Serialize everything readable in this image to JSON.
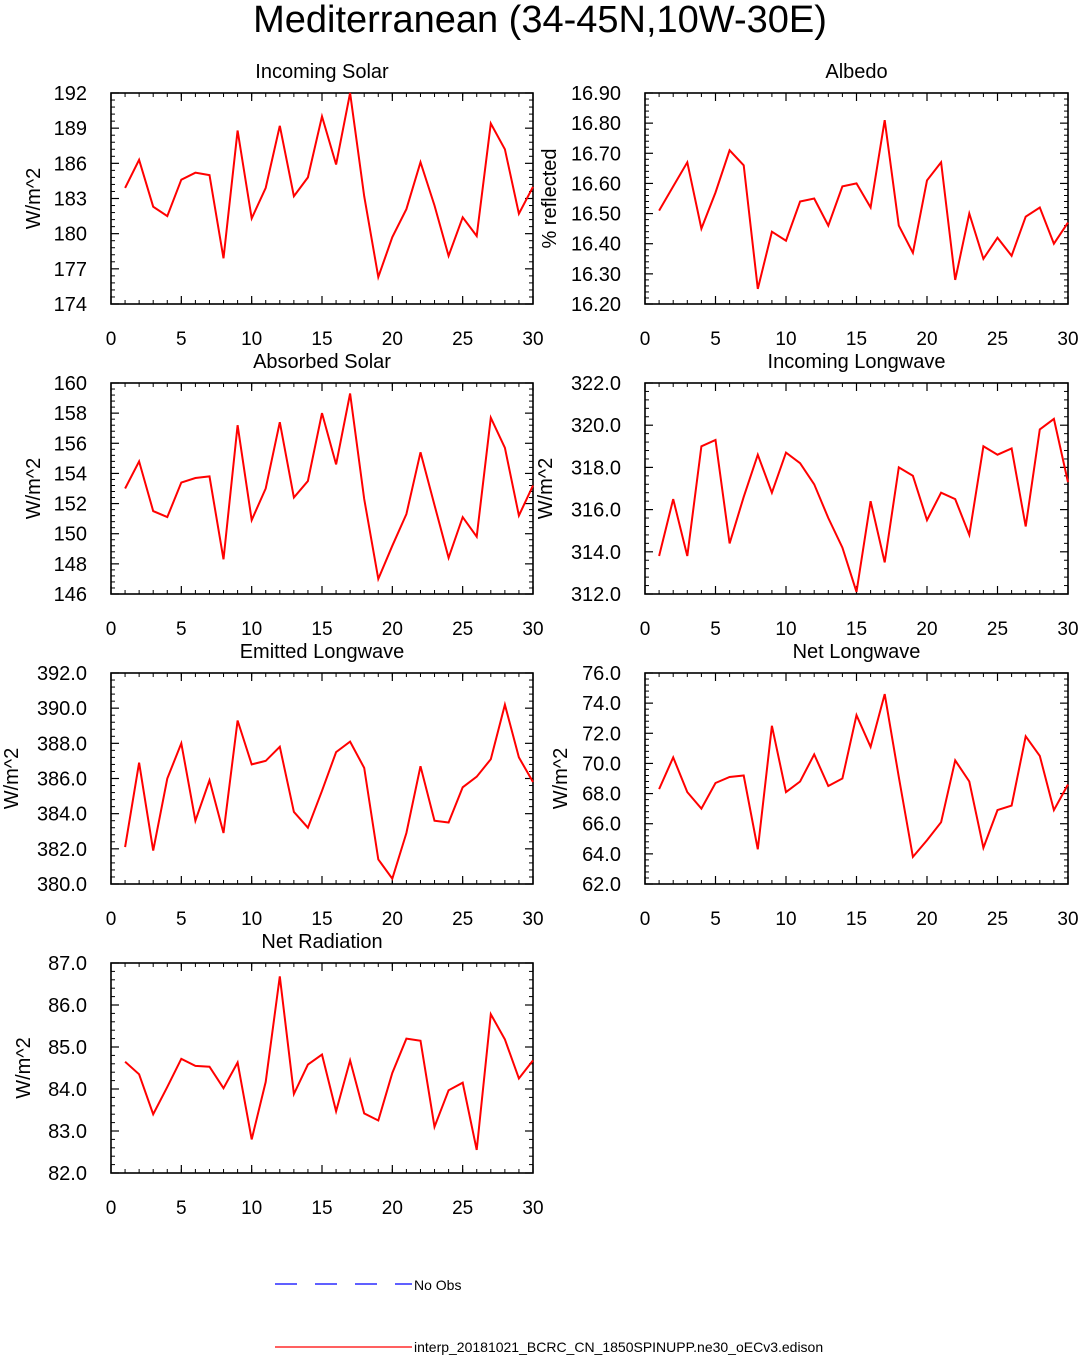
{
  "title": "Mediterranean (34-45N,10W-30E)",
  "legend": [
    {
      "label": "No Obs",
      "color": "#0000ff",
      "style": "dashed"
    },
    {
      "label": "interp_20181021_BCRC_CN_1850SPINUPP.ne30_oECv3.edison",
      "color": "#ff0000",
      "style": "solid"
    }
  ],
  "chart_data": [
    {
      "type": "line",
      "title": "Incoming Solar",
      "ylabel": "W/m^2",
      "xlabel": "",
      "xlim": [
        0,
        30
      ],
      "ylim": [
        174,
        192
      ],
      "xticks": [
        0,
        5,
        10,
        15,
        20,
        25,
        30
      ],
      "xtick_labels": [
        "0",
        "5",
        "10",
        "15",
        "20",
        "25",
        "30"
      ],
      "yticks": [
        174,
        177,
        180,
        183,
        186,
        189,
        192
      ],
      "ytick_labels": [
        "174",
        "177",
        "180",
        "183",
        "186",
        "189",
        "192"
      ],
      "x": [
        1,
        2,
        3,
        4,
        5,
        6,
        7,
        8,
        9,
        10,
        11,
        12,
        13,
        14,
        15,
        16,
        17,
        18,
        19,
        20,
        21,
        22,
        23,
        24,
        25,
        26,
        27,
        28,
        29,
        30
      ],
      "series": [
        {
          "name": "interp_20181021_BCRC_CN_1850SPINUPP.ne30_oECv3.edison",
          "color": "#ff0000",
          "values": [
            183.9,
            186.3,
            182.3,
            181.5,
            184.6,
            185.2,
            185.0,
            177.9,
            188.8,
            181.3,
            183.9,
            189.2,
            183.2,
            184.8,
            190.0,
            185.9,
            192.0,
            183.2,
            176.3,
            179.7,
            182.1,
            186.1,
            182.4,
            178.1,
            181.4,
            179.8,
            189.4,
            187.2,
            181.7,
            184.0
          ]
        }
      ]
    },
    {
      "type": "line",
      "title": "Albedo",
      "ylabel": "% reflected",
      "xlabel": "",
      "xlim": [
        0,
        30
      ],
      "ylim": [
        16.2,
        16.9
      ],
      "xticks": [
        0,
        5,
        10,
        15,
        20,
        25,
        30
      ],
      "xtick_labels": [
        "0",
        "5",
        "10",
        "15",
        "20",
        "25",
        "30"
      ],
      "yticks": [
        16.2,
        16.3,
        16.4,
        16.5,
        16.6,
        16.7,
        16.8,
        16.9
      ],
      "ytick_labels": [
        "16.20",
        "16.30",
        "16.40",
        "16.50",
        "16.60",
        "16.70",
        "16.80",
        "16.90"
      ],
      "x": [
        1,
        2,
        3,
        4,
        5,
        6,
        7,
        8,
        9,
        10,
        11,
        12,
        13,
        14,
        15,
        16,
        17,
        18,
        19,
        20,
        21,
        22,
        23,
        24,
        25,
        26,
        27,
        28,
        29,
        30
      ],
      "series": [
        {
          "name": "interp_20181021_BCRC_CN_1850SPINUPP.ne30_oECv3.edison",
          "color": "#ff0000",
          "values": [
            16.51,
            16.59,
            16.67,
            16.45,
            16.57,
            16.71,
            16.66,
            16.25,
            16.44,
            16.41,
            16.54,
            16.55,
            16.46,
            16.59,
            16.6,
            16.52,
            16.81,
            16.46,
            16.37,
            16.61,
            16.67,
            16.28,
            16.5,
            16.35,
            16.42,
            16.36,
            16.49,
            16.52,
            16.4,
            16.47
          ]
        }
      ]
    },
    {
      "type": "line",
      "title": "Absorbed Solar",
      "ylabel": "W/m^2",
      "xlabel": "",
      "xlim": [
        0,
        30
      ],
      "ylim": [
        146,
        160
      ],
      "xticks": [
        0,
        5,
        10,
        15,
        20,
        25,
        30
      ],
      "xtick_labels": [
        "0",
        "5",
        "10",
        "15",
        "20",
        "25",
        "30"
      ],
      "yticks": [
        146,
        148,
        150,
        152,
        154,
        156,
        158,
        160
      ],
      "ytick_labels": [
        "146",
        "148",
        "150",
        "152",
        "154",
        "156",
        "158",
        "160"
      ],
      "x": [
        1,
        2,
        3,
        4,
        5,
        6,
        7,
        8,
        9,
        10,
        11,
        12,
        13,
        14,
        15,
        16,
        17,
        18,
        19,
        20,
        21,
        22,
        23,
        24,
        25,
        26,
        27,
        28,
        29,
        30
      ],
      "series": [
        {
          "name": "interp_20181021_BCRC_CN_1850SPINUPP.ne30_oECv3.edison",
          "color": "#ff0000",
          "values": [
            153.0,
            154.8,
            151.5,
            151.1,
            153.4,
            153.7,
            153.8,
            148.3,
            157.2,
            150.9,
            153.0,
            157.4,
            152.4,
            153.5,
            158.0,
            154.6,
            159.3,
            152.3,
            147.0,
            149.2,
            151.3,
            155.4,
            151.9,
            148.4,
            151.1,
            149.8,
            157.7,
            155.7,
            151.2,
            153.2
          ]
        }
      ]
    },
    {
      "type": "line",
      "title": "Incoming Longwave",
      "ylabel": "W/m^2",
      "xlabel": "",
      "xlim": [
        0,
        30
      ],
      "ylim": [
        312,
        322
      ],
      "xticks": [
        0,
        5,
        10,
        15,
        20,
        25,
        30
      ],
      "xtick_labels": [
        "0",
        "5",
        "10",
        "15",
        "20",
        "25",
        "30"
      ],
      "yticks": [
        312,
        314,
        316,
        318,
        320,
        322
      ],
      "ytick_labels": [
        "312.0",
        "314.0",
        "316.0",
        "318.0",
        "320.0",
        "322.0"
      ],
      "x": [
        1,
        2,
        3,
        4,
        5,
        6,
        7,
        8,
        9,
        10,
        11,
        12,
        13,
        14,
        15,
        16,
        17,
        18,
        19,
        20,
        21,
        22,
        23,
        24,
        25,
        26,
        27,
        28,
        29,
        30
      ],
      "series": [
        {
          "name": "interp_20181021_BCRC_CN_1850SPINUPP.ne30_oECv3.edison",
          "color": "#ff0000",
          "values": [
            313.8,
            316.5,
            313.8,
            319.0,
            319.3,
            314.4,
            316.6,
            318.6,
            316.8,
            318.7,
            318.2,
            317.2,
            315.6,
            314.2,
            312.1,
            316.4,
            313.5,
            318.0,
            317.6,
            315.5,
            316.8,
            316.5,
            314.8,
            319.0,
            318.6,
            318.9,
            315.2,
            319.8,
            320.3,
            317.3
          ]
        }
      ]
    },
    {
      "type": "line",
      "title": "Emitted Longwave",
      "ylabel": "W/m^2",
      "xlabel": "",
      "xlim": [
        0,
        30
      ],
      "ylim": [
        380,
        392
      ],
      "xticks": [
        0,
        5,
        10,
        15,
        20,
        25,
        30
      ],
      "xtick_labels": [
        "0",
        "5",
        "10",
        "15",
        "20",
        "25",
        "30"
      ],
      "yticks": [
        380,
        382,
        384,
        386,
        388,
        390,
        392
      ],
      "ytick_labels": [
        "380.0",
        "382.0",
        "384.0",
        "386.0",
        "388.0",
        "390.0",
        "392.0"
      ],
      "x": [
        1,
        2,
        3,
        4,
        5,
        6,
        7,
        8,
        9,
        10,
        11,
        12,
        13,
        14,
        15,
        16,
        17,
        18,
        19,
        20,
        21,
        22,
        23,
        24,
        25,
        26,
        27,
        28,
        29,
        30
      ],
      "series": [
        {
          "name": "interp_20181021_BCRC_CN_1850SPINUPP.ne30_oECv3.edison",
          "color": "#ff0000",
          "values": [
            382.1,
            386.9,
            381.9,
            386.0,
            388.0,
            383.6,
            385.9,
            382.9,
            389.3,
            386.8,
            387.0,
            387.8,
            384.1,
            383.2,
            385.3,
            387.5,
            388.1,
            386.6,
            381.4,
            380.3,
            382.9,
            386.7,
            383.6,
            383.5,
            385.5,
            386.1,
            387.1,
            390.2,
            387.2,
            385.8
          ]
        }
      ]
    },
    {
      "type": "line",
      "title": "Net Longwave",
      "ylabel": "W/m^2",
      "xlabel": "",
      "xlim": [
        0,
        30
      ],
      "ylim": [
        62,
        76
      ],
      "xticks": [
        0,
        5,
        10,
        15,
        20,
        25,
        30
      ],
      "xtick_labels": [
        "0",
        "5",
        "10",
        "15",
        "20",
        "25",
        "30"
      ],
      "yticks": [
        62,
        64,
        66,
        68,
        70,
        72,
        74,
        76
      ],
      "ytick_labels": [
        "62.0",
        "64.0",
        "66.0",
        "68.0",
        "70.0",
        "72.0",
        "74.0",
        "76.0"
      ],
      "x": [
        1,
        2,
        3,
        4,
        5,
        6,
        7,
        8,
        9,
        10,
        11,
        12,
        13,
        14,
        15,
        16,
        17,
        18,
        19,
        20,
        21,
        22,
        23,
        24,
        25,
        26,
        27,
        28,
        29,
        30
      ],
      "series": [
        {
          "name": "interp_20181021_BCRC_CN_1850SPINUPP.ne30_oECv3.edison",
          "color": "#ff0000",
          "values": [
            68.3,
            70.4,
            68.1,
            67.0,
            68.7,
            69.1,
            69.2,
            64.3,
            72.5,
            68.1,
            68.8,
            70.6,
            68.5,
            69.0,
            73.2,
            71.1,
            74.6,
            69.1,
            63.8,
            64.9,
            66.1,
            70.2,
            68.8,
            64.4,
            66.9,
            67.2,
            71.8,
            70.5,
            66.9,
            68.6
          ]
        }
      ]
    },
    {
      "type": "line",
      "title": "Net Radiation",
      "ylabel": "W/m^2",
      "xlabel": "",
      "xlim": [
        0,
        30
      ],
      "ylim": [
        82,
        87
      ],
      "xticks": [
        0,
        5,
        10,
        15,
        20,
        25,
        30
      ],
      "xtick_labels": [
        "0",
        "5",
        "10",
        "15",
        "20",
        "25",
        "30"
      ],
      "yticks": [
        82,
        83,
        84,
        85,
        86,
        87
      ],
      "ytick_labels": [
        "82.0",
        "83.0",
        "84.0",
        "85.0",
        "86.0",
        "87.0"
      ],
      "x": [
        1,
        2,
        3,
        4,
        5,
        6,
        7,
        8,
        9,
        10,
        11,
        12,
        13,
        14,
        15,
        16,
        17,
        18,
        19,
        20,
        21,
        22,
        23,
        24,
        25,
        26,
        27,
        28,
        29,
        30
      ],
      "series": [
        {
          "name": "interp_20181021_BCRC_CN_1850SPINUPP.ne30_oECv3.edison",
          "color": "#ff0000",
          "values": [
            84.65,
            84.35,
            83.4,
            84.05,
            84.72,
            84.55,
            84.53,
            84.02,
            84.63,
            82.8,
            84.17,
            86.68,
            83.88,
            84.58,
            84.82,
            83.47,
            84.68,
            83.42,
            83.25,
            84.38,
            85.2,
            85.15,
            83.1,
            83.97,
            84.15,
            82.55,
            85.78,
            85.18,
            84.25,
            84.68
          ]
        }
      ]
    }
  ]
}
